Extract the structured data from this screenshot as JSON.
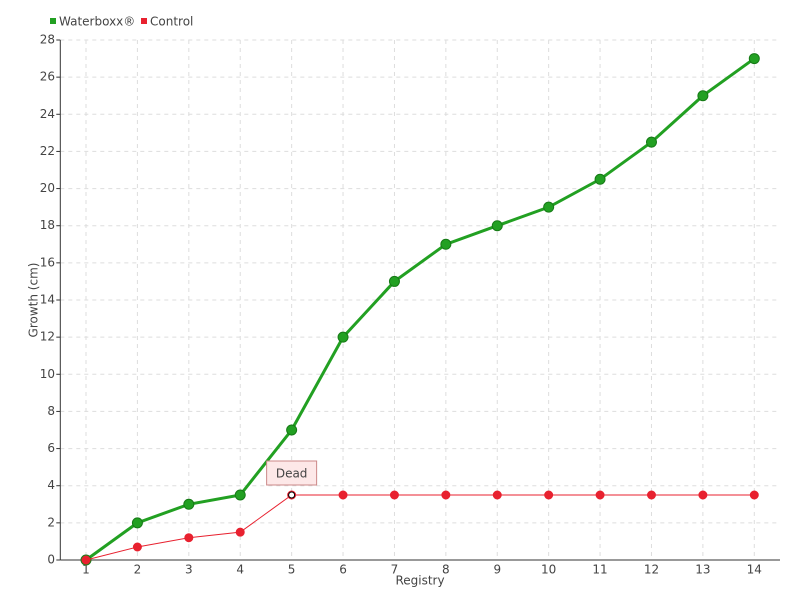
{
  "chart_data": {
    "type": "line",
    "x_label": "Registry",
    "y_label": "Growth (cm)",
    "categories": [
      "1",
      "2",
      "3",
      "4",
      "5",
      "6",
      "7",
      "8",
      "9",
      "10",
      "11",
      "12",
      "13",
      "14"
    ],
    "series": [
      {
        "name": "Waterboxx®",
        "color": "#22a022",
        "values": [
          0,
          2,
          3,
          3.5,
          7,
          12,
          15,
          17,
          18,
          19,
          20.5,
          22.5,
          25,
          27
        ]
      },
      {
        "name": "Control",
        "color": "#e8212f",
        "values": [
          0,
          0.7,
          1.2,
          1.5,
          3.5,
          3.5,
          3.5,
          3.5,
          3.5,
          3.5,
          3.5,
          3.5,
          3.5,
          3.5
        ]
      }
    ],
    "annotations": [
      {
        "text": "Dead"
      }
    ],
    "ylim": [
      0,
      28
    ],
    "yticks": [
      0,
      2,
      4,
      6,
      8,
      10,
      12,
      14,
      16,
      18,
      20,
      22,
      24,
      26,
      28
    ],
    "grid": true
  }
}
